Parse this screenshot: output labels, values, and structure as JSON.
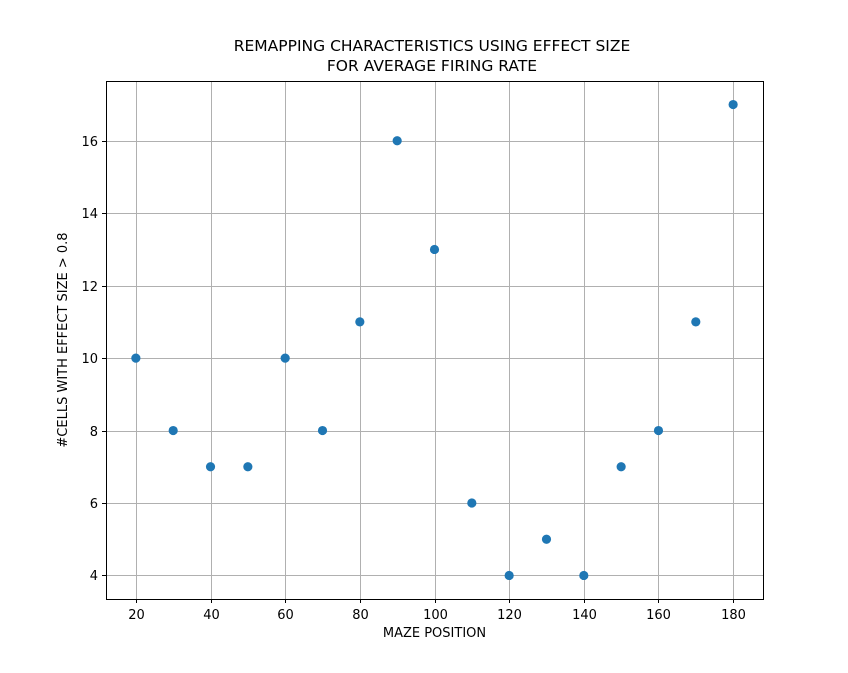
{
  "chart_data": {
    "type": "scatter",
    "title_lines": [
      "REMAPPING CHARACTERISTICS USING EFFECT SIZE",
      "FOR AVERAGE FIRING RATE"
    ],
    "xlabel": "MAZE POSITION",
    "ylabel": "#CELLS WITH EFFECT SIZE > 0.8",
    "xlim": [
      12,
      188
    ],
    "ylim": [
      3.35,
      17.65
    ],
    "xticks": [
      20,
      40,
      60,
      80,
      100,
      120,
      140,
      160,
      180
    ],
    "yticks": [
      4,
      6,
      8,
      10,
      12,
      14,
      16
    ],
    "grid": true,
    "marker_color": "#1f77b4",
    "grid_color": "#b0b0b0",
    "series": [
      {
        "name": "cells",
        "x": [
          20,
          30,
          40,
          50,
          60,
          70,
          80,
          90,
          100,
          110,
          120,
          130,
          140,
          150,
          160,
          170,
          180
        ],
        "y": [
          10,
          8,
          7,
          7,
          10,
          8,
          11,
          16,
          13,
          6,
          4,
          5,
          4,
          7,
          8,
          11,
          17
        ]
      }
    ]
  }
}
